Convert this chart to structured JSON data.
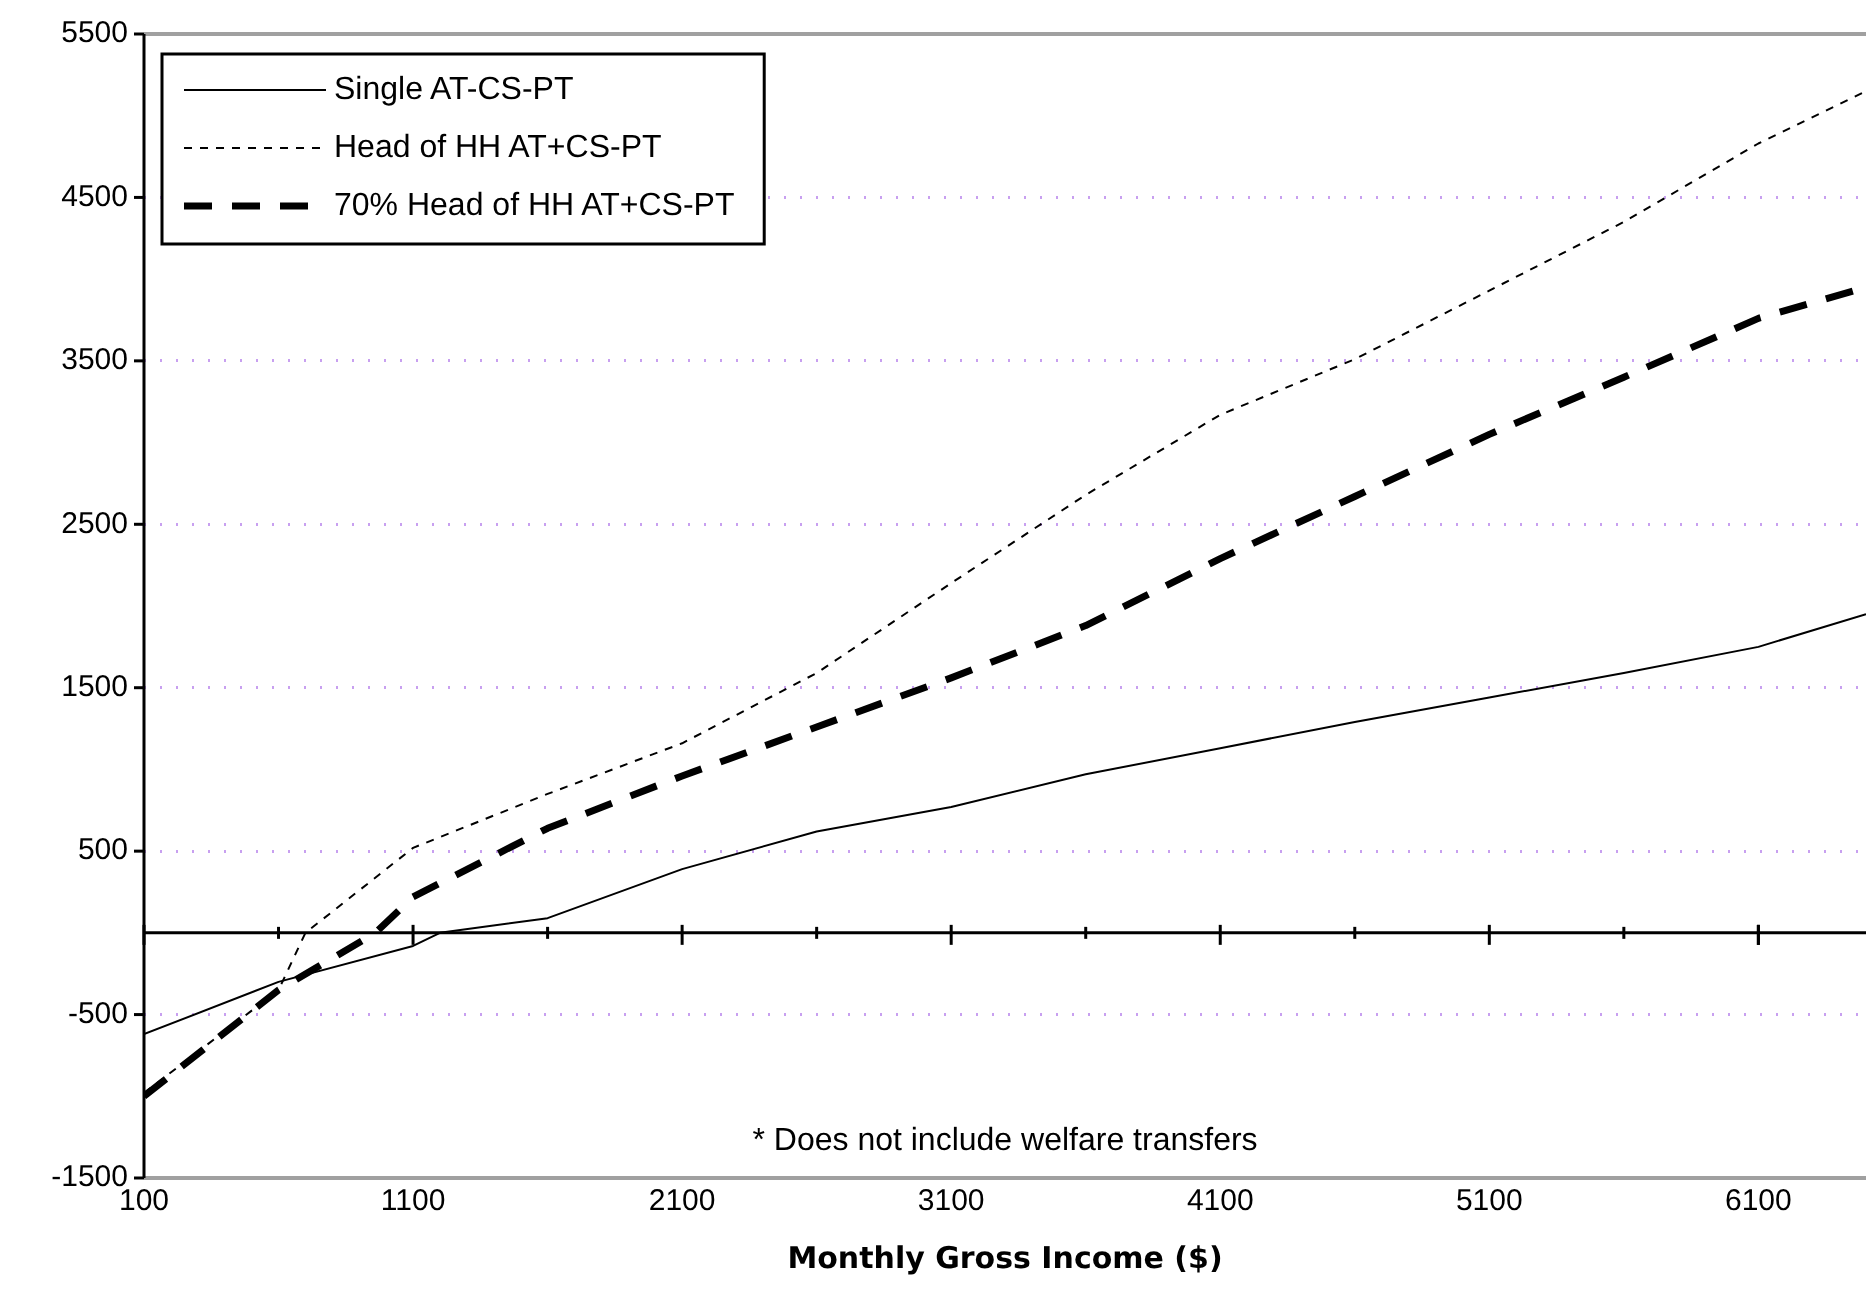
{
  "chart_data": {
    "type": "line",
    "xlabel": "Monthly Gross Income ($)",
    "xlim": [
      100,
      6500
    ],
    "xticks": [
      100,
      {
        "value": 600,
        "label": null
      },
      1100,
      {
        "value": 1600,
        "label": null
      },
      2100,
      {
        "value": 2600,
        "label": null
      },
      3100,
      {
        "value": 3600,
        "label": null
      },
      4100,
      {
        "value": 4600,
        "label": null
      },
      5100,
      {
        "value": 5600,
        "label": null
      },
      6100
    ],
    "ylim": [
      -1500,
      5500
    ],
    "yticks": [
      -1500,
      -500,
      500,
      1500,
      2500,
      3500,
      4500,
      5500
    ],
    "grid": "y",
    "legend": "top left",
    "marker": "none",
    "ref_lines": [
      {
        "axis": "y",
        "value": 0,
        "color": "#000000"
      }
    ],
    "annotations": [
      "* Does not include welfare transfers"
    ],
    "series": [
      {
        "name": "Single AT-CS-PT",
        "color": "#000000",
        "line_style": "solid",
        "x": [
          100,
          600,
          1100,
          1200,
          1600,
          2100,
          2600,
          3100,
          3600,
          4100,
          4600,
          5100,
          5600,
          6100,
          6500
        ],
        "values": [
          -620,
          -300,
          -80,
          0,
          90,
          390,
          620,
          770,
          970,
          1130,
          1290,
          1440,
          1590,
          1750,
          1950
        ]
      },
      {
        "name": "Head of HH AT+CS-PT",
        "color": "#000000",
        "line_style": "dashed",
        "x": [
          100,
          600,
          700,
          1100,
          1600,
          2100,
          2600,
          3100,
          3600,
          4100,
          4600,
          5100,
          5600,
          6100,
          6500
        ],
        "values": [
          -980,
          -350,
          0,
          520,
          850,
          1160,
          1590,
          2140,
          2680,
          3170,
          3510,
          3930,
          4350,
          4830,
          5150
        ]
      },
      {
        "name": "70% Head of HH AT+CS-PT",
        "color": "#000000",
        "line_style": "dashed",
        "x": [
          100,
          600,
          960,
          1100,
          1600,
          2100,
          2600,
          3100,
          3600,
          4100,
          4600,
          5100,
          5600,
          6100,
          6500
        ],
        "values": [
          -1000,
          -350,
          0,
          220,
          640,
          960,
          1260,
          1560,
          1880,
          2290,
          2670,
          3050,
          3400,
          3760,
          3950
        ]
      }
    ]
  }
}
